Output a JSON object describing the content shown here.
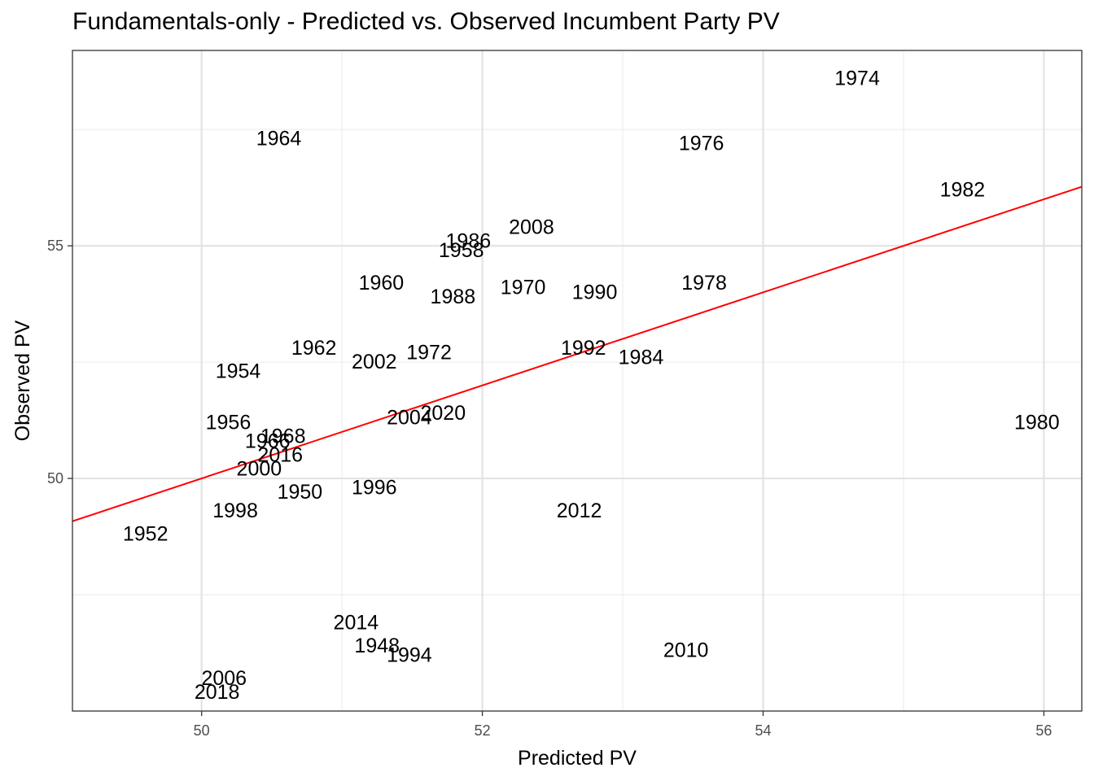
{
  "chart_data": {
    "type": "scatter",
    "title": "Fundamentals-only - Predicted vs. Observed Incumbent Party PV",
    "xlabel": "Predicted PV",
    "ylabel": "Observed PV",
    "xlim": [
      49.08,
      56.27
    ],
    "ylim": [
      45.0,
      59.2
    ],
    "x_ticks": [
      50,
      52,
      54,
      56
    ],
    "y_ticks": [
      50,
      55
    ],
    "grid": true,
    "fit_line": {
      "color": "#ff0000",
      "slope": 1,
      "intercept": 0
    },
    "points": [
      {
        "label": "1948",
        "x": 51.25,
        "y": 46.4
      },
      {
        "label": "1950",
        "x": 50.7,
        "y": 49.7
      },
      {
        "label": "1952",
        "x": 49.6,
        "y": 48.8
      },
      {
        "label": "1954",
        "x": 50.26,
        "y": 52.3
      },
      {
        "label": "1956",
        "x": 50.19,
        "y": 51.2
      },
      {
        "label": "1958",
        "x": 51.85,
        "y": 54.9
      },
      {
        "label": "1960",
        "x": 51.28,
        "y": 54.2
      },
      {
        "label": "1962",
        "x": 50.8,
        "y": 52.8
      },
      {
        "label": "1964",
        "x": 50.55,
        "y": 57.3
      },
      {
        "label": "1966",
        "x": 50.47,
        "y": 50.8
      },
      {
        "label": "1968",
        "x": 50.58,
        "y": 50.9
      },
      {
        "label": "1970",
        "x": 52.29,
        "y": 54.1
      },
      {
        "label": "1972",
        "x": 51.62,
        "y": 52.7
      },
      {
        "label": "1974",
        "x": 54.67,
        "y": 58.6
      },
      {
        "label": "1976",
        "x": 53.56,
        "y": 57.2
      },
      {
        "label": "1978",
        "x": 53.58,
        "y": 54.2
      },
      {
        "label": "1980",
        "x": 55.95,
        "y": 51.2
      },
      {
        "label": "1982",
        "x": 55.42,
        "y": 56.2
      },
      {
        "label": "1984",
        "x": 53.13,
        "y": 52.6
      },
      {
        "label": "1986",
        "x": 51.9,
        "y": 55.1
      },
      {
        "label": "1988",
        "x": 51.79,
        "y": 53.9
      },
      {
        "label": "1990",
        "x": 52.8,
        "y": 54.0
      },
      {
        "label": "1992",
        "x": 52.72,
        "y": 52.8
      },
      {
        "label": "1994",
        "x": 51.48,
        "y": 46.2
      },
      {
        "label": "1996",
        "x": 51.23,
        "y": 49.8
      },
      {
        "label": "1998",
        "x": 50.24,
        "y": 49.3
      },
      {
        "label": "2000",
        "x": 50.41,
        "y": 50.2
      },
      {
        "label": "2002",
        "x": 51.23,
        "y": 52.5
      },
      {
        "label": "2004",
        "x": 51.48,
        "y": 51.3
      },
      {
        "label": "2006",
        "x": 50.16,
        "y": 45.7
      },
      {
        "label": "2008",
        "x": 52.35,
        "y": 55.4
      },
      {
        "label": "2010",
        "x": 53.45,
        "y": 46.3
      },
      {
        "label": "2012",
        "x": 52.69,
        "y": 49.3
      },
      {
        "label": "2014",
        "x": 51.1,
        "y": 46.9
      },
      {
        "label": "2016",
        "x": 50.56,
        "y": 50.5
      },
      {
        "label": "2018",
        "x": 50.11,
        "y": 45.4
      },
      {
        "label": "2020",
        "x": 51.72,
        "y": 51.4
      }
    ]
  }
}
